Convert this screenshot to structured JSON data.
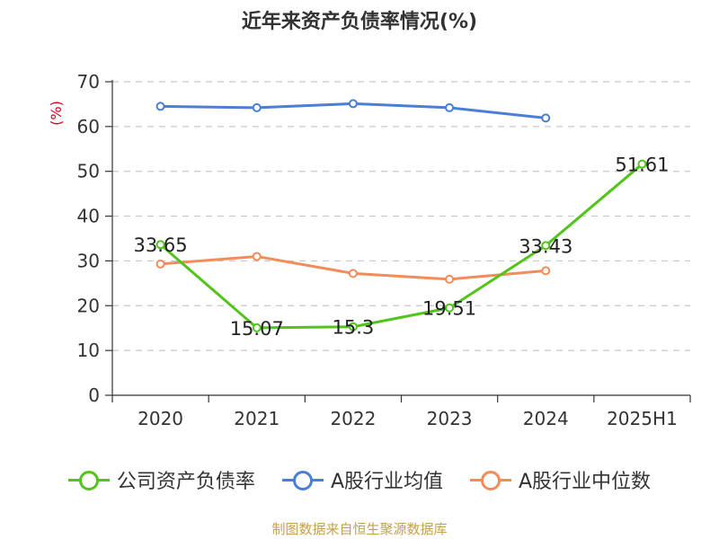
{
  "page": {
    "source": "制图数据来自恒生聚源数据库"
  },
  "chart_data": {
    "type": "line",
    "title": "近年来资产负债率情况(%)",
    "ylabel": "(%)",
    "categories": [
      "2020",
      "2021",
      "2022",
      "2023",
      "2024",
      "2025H1"
    ],
    "ylim": [
      0,
      70
    ],
    "yticks": [
      0,
      10,
      20,
      30,
      40,
      50,
      60,
      70
    ],
    "grid": true,
    "legend_position": "bottom",
    "series": [
      {
        "name": "公司资产负债率",
        "color": "#52c41a",
        "values": [
          33.65,
          15.07,
          15.3,
          19.51,
          33.43,
          51.61
        ],
        "labels": [
          "33.65",
          "15.07",
          "15.3",
          "19.51",
          "33.43",
          "51.61"
        ]
      },
      {
        "name": "A股行业均值",
        "color": "#4a7fd6",
        "values": [
          64.5,
          64.2,
          65.1,
          64.2,
          61.9,
          null
        ]
      },
      {
        "name": "A股行业中位数",
        "color": "#f28c5a",
        "values": [
          29.3,
          31.0,
          27.2,
          25.9,
          27.8,
          null
        ]
      }
    ]
  }
}
